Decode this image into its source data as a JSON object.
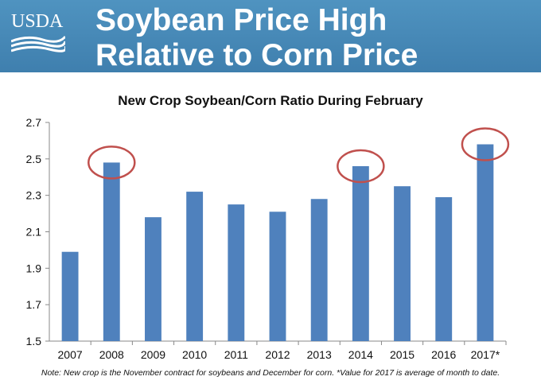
{
  "header": {
    "logo_text": "USDA",
    "title_line1": "Soybean Price High",
    "title_line2": "Relative to Corn Price"
  },
  "colors": {
    "header_bg": "#4a8cba",
    "bar": "#4f81bd",
    "highlight_circle": "#c0504d"
  },
  "chart_data": {
    "type": "bar",
    "title": "New Crop Soybean/Corn Ratio During February",
    "categories": [
      "2007",
      "2008",
      "2009",
      "2010",
      "2011",
      "2012",
      "2013",
      "2014",
      "2015",
      "2016",
      "2017*"
    ],
    "values": [
      1.99,
      2.48,
      2.18,
      2.32,
      2.25,
      2.21,
      2.28,
      2.46,
      2.35,
      2.29,
      2.58
    ],
    "highlighted": [
      "2008",
      "2014",
      "2017*"
    ],
    "ylim": [
      1.5,
      2.7
    ],
    "yticks": [
      "1.5",
      "1.7",
      "1.9",
      "2.1",
      "2.3",
      "2.5",
      "2.7"
    ],
    "xlabel": "",
    "ylabel": "",
    "grid": false,
    "legend": "none"
  },
  "note": "Note: New crop is the November contract for soybeans and December for corn. *Value for 2017 is average of month to date."
}
